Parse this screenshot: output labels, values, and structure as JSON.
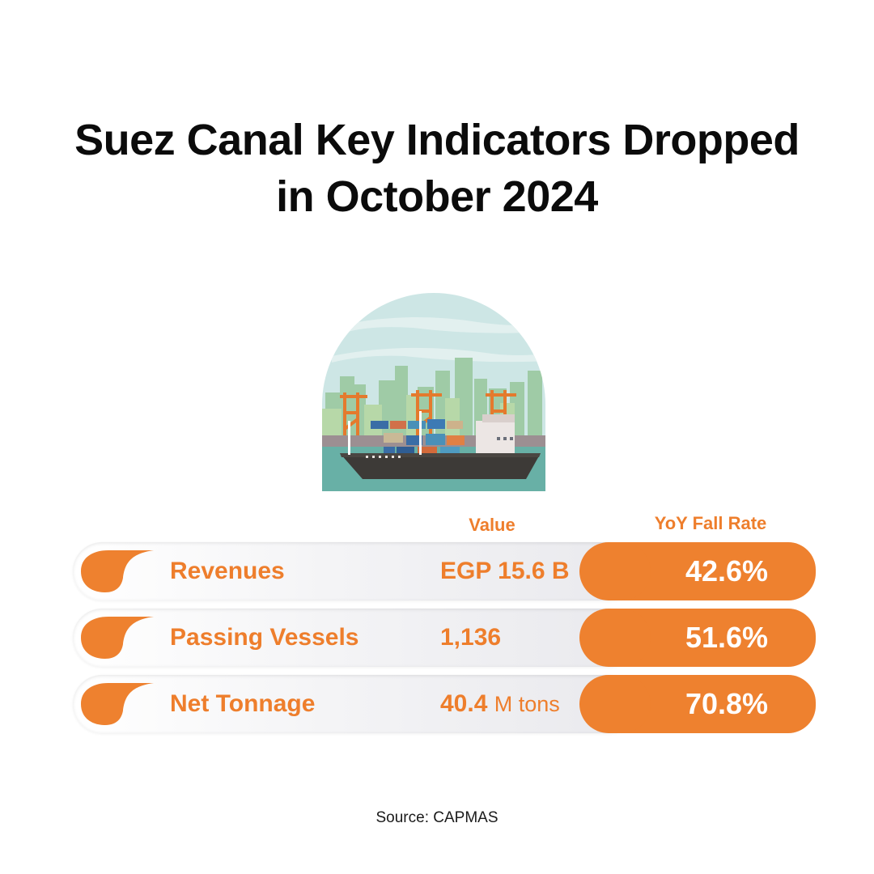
{
  "title": {
    "line1": "Suez Canal Key Indicators Dropped",
    "line2": "in October 2024"
  },
  "illustration": {
    "icon": "cargo-ship-port-icon"
  },
  "columns": {
    "value": "Value",
    "rate": "YoY Fall Rate"
  },
  "chart_data": {
    "type": "table",
    "columns": [
      "Value",
      "YoY Fall Rate"
    ],
    "rows": [
      {
        "label": "Revenues",
        "value_num": "EGP 15.6 B",
        "value_unit": "",
        "rate": "42.6%",
        "rate_value": 42.6
      },
      {
        "label": "Passing Vessels",
        "value_num": "1,136",
        "value_unit": "",
        "rate": "51.6%",
        "rate_value": 51.6
      },
      {
        "label": "Net Tonnage",
        "value_num": "40.4",
        "value_unit": "M tons",
        "rate": "70.8%",
        "rate_value": 70.8
      }
    ]
  },
  "colors": {
    "accent": "#ee812f",
    "title": "#0b0b0b",
    "sky": "#cde6e5",
    "water": "#68b0a6"
  },
  "source": "Source: CAPMAS"
}
